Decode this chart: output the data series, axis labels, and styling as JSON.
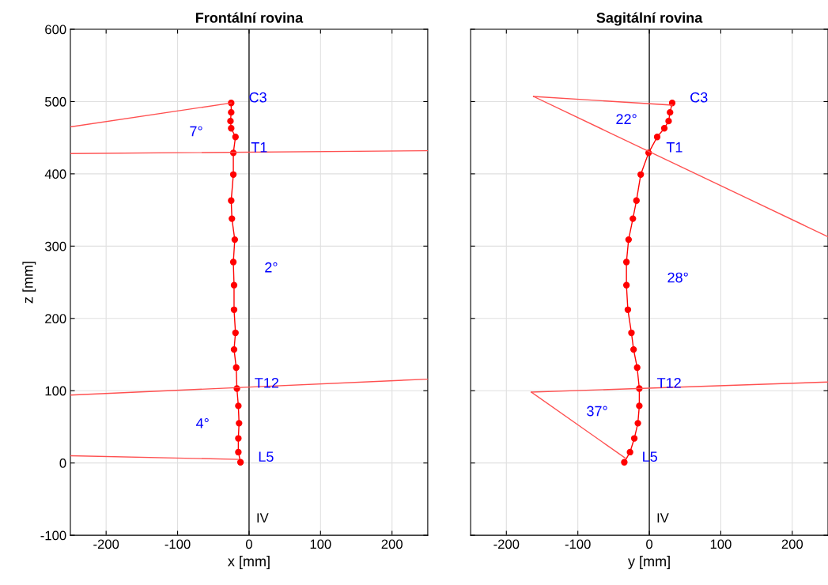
{
  "chart_data": [
    {
      "type": "line",
      "title": "Frontální rovina",
      "xlabel": "x [mm]",
      "ylabel": "z [mm]",
      "xlim": [
        -250,
        250
      ],
      "ylim": [
        -100,
        600
      ],
      "xticks": [
        -200,
        -100,
        0,
        100,
        200
      ],
      "yticks": [
        -100,
        0,
        100,
        200,
        300,
        400,
        500,
        600
      ],
      "grid": true,
      "ref_lines": [
        {
          "axis": "x",
          "value": 0,
          "label": "IV",
          "color": "#000000"
        }
      ],
      "series": [
        {
          "color": "#ff0000",
          "marker": "circle",
          "x": [
            -25,
            -25,
            -26,
            -25,
            -19,
            -22,
            -22,
            -25,
            -24,
            -20,
            -22,
            -21,
            -21,
            -19,
            -21,
            -18,
            -17,
            -15,
            -14,
            -15,
            -15,
            -12
          ],
          "values": [
            498,
            485,
            473,
            463,
            451,
            429,
            399,
            363,
            338,
            309,
            278,
            246,
            212,
            180,
            157,
            132,
            103,
            79,
            55,
            34,
            15,
            1
          ],
          "value_labels": [
            "C3",
            null,
            null,
            null,
            null,
            "T1",
            null,
            null,
            null,
            null,
            null,
            null,
            null,
            null,
            null,
            null,
            "T12",
            null,
            null,
            null,
            null,
            "L5"
          ]
        },
        {
          "color": "#ff5050",
          "x": [
            -250,
            -25
          ],
          "values": [
            465,
            498
          ]
        },
        {
          "color": "#ff5050",
          "x": [
            -250,
            250
          ],
          "values": [
            428,
            432
          ]
        },
        {
          "color": "#ff5050",
          "x": [
            -250,
            250
          ],
          "values": [
            94,
            116
          ]
        },
        {
          "color": "#ff5050",
          "x": [
            -250,
            -15
          ],
          "values": [
            10,
            5
          ]
        }
      ],
      "annotations": [
        "7°",
        "2°",
        "4°"
      ]
    },
    {
      "type": "line",
      "title": "Sagitální rovina",
      "xlabel": "y [mm]",
      "xlim": [
        -250,
        250
      ],
      "ylim": [
        -100,
        600
      ],
      "xticks": [
        -200,
        -100,
        0,
        100,
        200
      ],
      "yticks": [
        -100,
        0,
        100,
        200,
        300,
        400,
        500,
        600
      ],
      "grid": true,
      "tick_labels": "x",
      "ref_lines": [
        {
          "axis": "x",
          "value": 0,
          "label": "IV",
          "color": "#000000"
        }
      ],
      "series": [
        {
          "color": "#ff0000",
          "marker": "circle",
          "x": [
            32,
            29,
            27,
            21,
            11,
            -1,
            -12,
            -18,
            -23,
            -29,
            -32,
            -32,
            -30,
            -25,
            -22,
            -17,
            -14,
            -14,
            -16,
            -21,
            -27,
            -35
          ],
          "values": [
            498,
            485,
            473,
            463,
            451,
            429,
            399,
            363,
            338,
            309,
            278,
            246,
            212,
            180,
            157,
            132,
            103,
            79,
            55,
            34,
            15,
            1
          ],
          "value_labels": [
            "C3",
            null,
            null,
            null,
            null,
            "T1",
            null,
            null,
            null,
            null,
            null,
            null,
            null,
            null,
            null,
            null,
            "T12",
            null,
            null,
            null,
            null,
            "L5"
          ]
        },
        {
          "color": "#ff5050",
          "x": [
            32,
            -162
          ],
          "values": [
            495,
            507
          ]
        },
        {
          "color": "#ff5050",
          "x": [
            -162,
            250
          ],
          "values": [
            507,
            313
          ]
        },
        {
          "color": "#ff5050",
          "x": [
            -165,
            250
          ],
          "values": [
            98,
            112
          ]
        },
        {
          "color": "#ff5050",
          "x": [
            -165,
            -34
          ],
          "values": [
            98,
            7
          ]
        }
      ],
      "annotations": [
        "22°",
        "28°",
        "37°"
      ]
    }
  ]
}
